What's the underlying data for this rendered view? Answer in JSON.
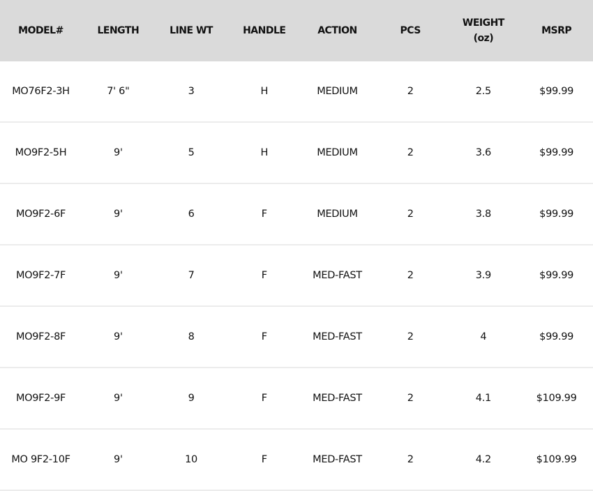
{
  "table": {
    "headers": [
      "MODEL#",
      "LENGTH",
      "LINE WT",
      "HANDLE",
      "ACTION",
      "PCS",
      "WEIGHT\n(oz)",
      "MSRP"
    ],
    "header_weight_line1": "WEIGHT",
    "header_weight_line2": "(oz)",
    "rows": [
      [
        "MO76F2-3H",
        "7' 6\"",
        "3",
        "H",
        "MEDIUM",
        "2",
        "2.5",
        "$99.99"
      ],
      [
        "MO9F2-5H",
        "9'",
        "5",
        "H",
        "MEDIUM",
        "2",
        "3.6",
        "$99.99"
      ],
      [
        "MO9F2-6F",
        "9'",
        "6",
        "F",
        "MEDIUM",
        "2",
        "3.8",
        "$99.99"
      ],
      [
        "MO9F2-7F",
        "9'",
        "7",
        "F",
        "MED-FAST",
        "2",
        "3.9",
        "$99.99"
      ],
      [
        "MO9F2-8F",
        "9'",
        "8",
        "F",
        "MED-FAST",
        "2",
        "4",
        "$99.99"
      ],
      [
        "MO9F2-9F",
        "9'",
        "9",
        "F",
        "MED-FAST",
        "2",
        "4.1",
        "$109.99"
      ],
      [
        "MO 9F2-10F",
        "9'",
        "10",
        "F",
        "MED-FAST",
        "2",
        "4.2",
        "$109.99"
      ]
    ]
  },
  "colors": {
    "header_bg": "#dadada",
    "row_border": "#ececec"
  }
}
